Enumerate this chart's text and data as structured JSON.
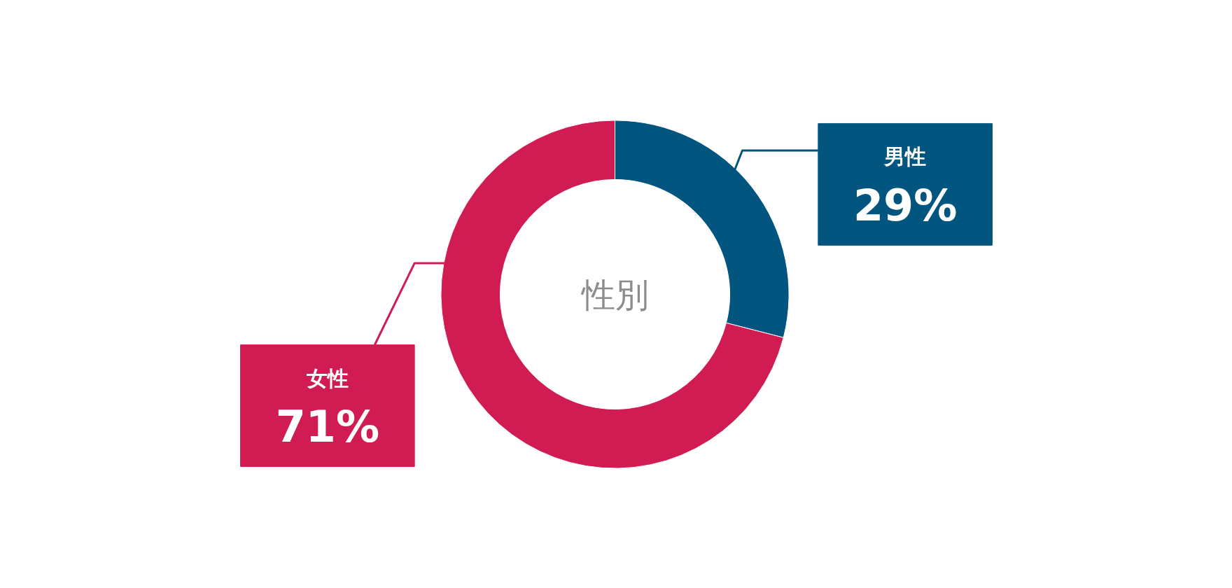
{
  "chart_data": {
    "type": "donut",
    "title": "性別",
    "categories": [
      "男性",
      "女性"
    ],
    "values": [
      29,
      71
    ],
    "colors": [
      "#01557f",
      "#d01c52"
    ],
    "value_labels": [
      "29%",
      "71%"
    ]
  }
}
